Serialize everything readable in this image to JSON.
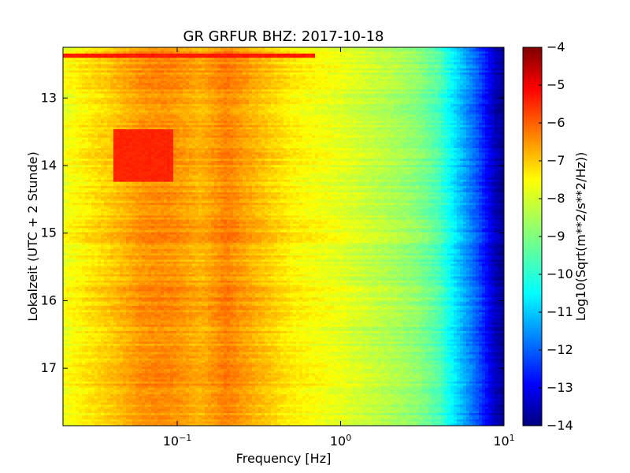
{
  "chart_data": {
    "type": "heatmap",
    "title": "GR GRFUR BHZ: 2017-10-18",
    "xlabel": "Frequency [Hz]",
    "ylabel": "Lokalzeit (UTC + 2 Stunde)",
    "x_scale": "log",
    "xlim": [
      0.02,
      10
    ],
    "ylim": [
      12.25,
      17.85
    ],
    "y_inverted": true,
    "x_ticks": [
      {
        "value": 0.1,
        "base": "10",
        "exp": "−1"
      },
      {
        "value": 1,
        "base": "10",
        "exp": "0"
      },
      {
        "value": 10,
        "base": "10",
        "exp": "1"
      }
    ],
    "y_ticks": [
      {
        "value": 13,
        "label": "13"
      },
      {
        "value": 14,
        "label": "14"
      },
      {
        "value": 15,
        "label": "15"
      },
      {
        "value": 16,
        "label": "16"
      },
      {
        "value": 17,
        "label": "17"
      }
    ],
    "colorbar": {
      "label": "Log10(Sqrt(m**2/s**2/Hz))",
      "colormap": "jet",
      "vmin": -14,
      "vmax": -4,
      "ticks": [
        {
          "value": -4,
          "label": "−4"
        },
        {
          "value": -5,
          "label": "−5"
        },
        {
          "value": -6,
          "label": "−6"
        },
        {
          "value": -7,
          "label": "−7"
        },
        {
          "value": -8,
          "label": "−8"
        },
        {
          "value": -9,
          "label": "−9"
        },
        {
          "value": -10,
          "label": "−10"
        },
        {
          "value": -11,
          "label": "−11"
        },
        {
          "value": -12,
          "label": "−12"
        },
        {
          "value": -13,
          "label": "−13"
        },
        {
          "value": -14,
          "label": "−14"
        }
      ]
    },
    "spectrum_profile": {
      "frequency_hz": [
        0.02,
        0.04,
        0.06,
        0.08,
        0.1,
        0.14,
        0.2,
        0.3,
        0.5,
        1,
        2,
        3,
        4,
        5,
        6,
        7,
        8,
        9,
        10
      ],
      "log10_psd": [
        -7.9,
        -7.2,
        -6.7,
        -6.6,
        -6.7,
        -7.0,
        -6.5,
        -7.0,
        -7.6,
        -8.0,
        -8.5,
        -8.9,
        -9.5,
        -10.5,
        -11.3,
        -12.0,
        -12.8,
        -13.5,
        -13.8
      ]
    },
    "notable_features": [
      {
        "label": "strong band",
        "time_hours": [
          13.45,
          14.25
        ],
        "frequency_hz": [
          0.04,
          0.095
        ],
        "log10_psd": -5.6
      },
      {
        "label": "transient line",
        "time_hours": [
          12.35,
          12.42
        ],
        "frequency_hz": [
          0.02,
          0.7
        ],
        "log10_psd": -5.5
      }
    ]
  }
}
